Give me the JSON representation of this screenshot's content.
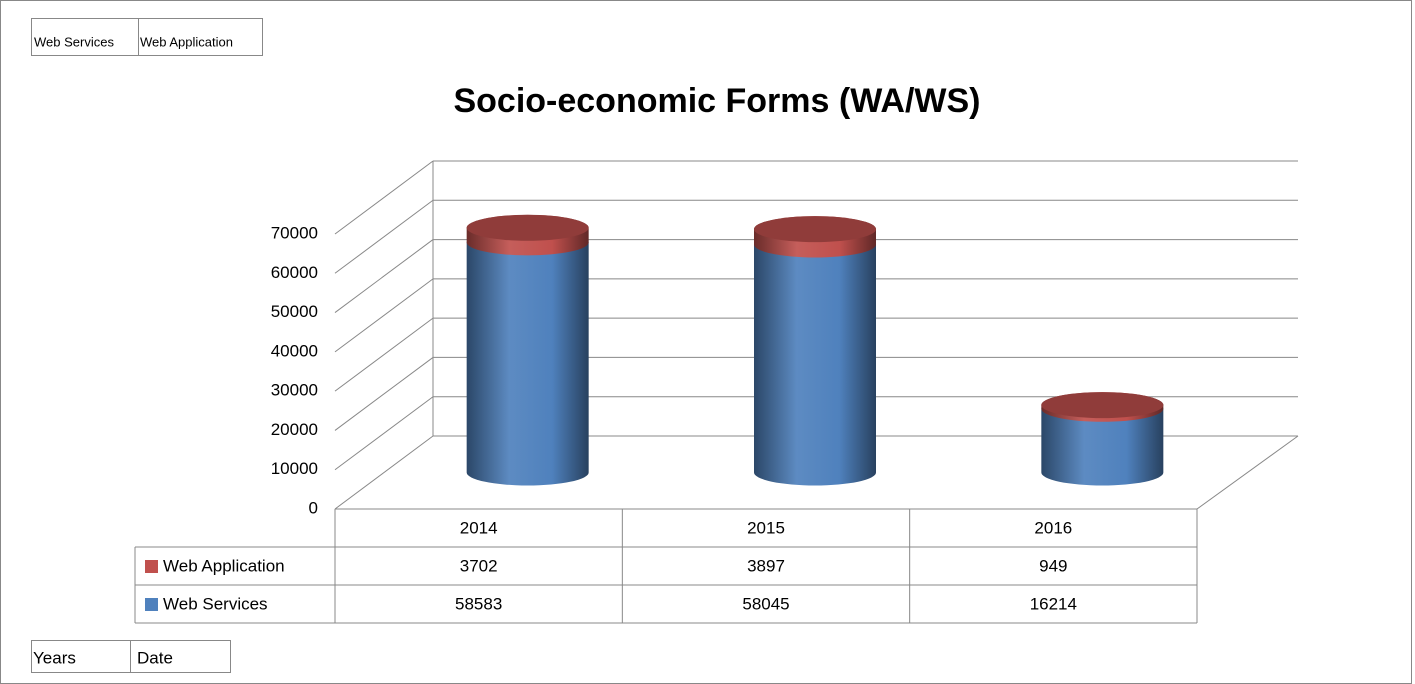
{
  "chart_data": {
    "type": "cylinder3d_stacked",
    "title": "Socio-economic Forms (WA/WS)",
    "field_buttons": [
      "Web Services",
      "Web Application"
    ],
    "axis_field_buttons": [
      "Years",
      "Date"
    ],
    "categories": [
      "2014",
      "2015",
      "2016"
    ],
    "series": [
      {
        "name": "Web Application",
        "color": "#c0504d",
        "values": [
          3702,
          3897,
          949
        ]
      },
      {
        "name": "Web Services",
        "color": "#4f81bd",
        "values": [
          58583,
          58045,
          16214
        ]
      }
    ],
    "ylim": [
      0,
      70000
    ],
    "yticks": [
      0,
      10000,
      20000,
      30000,
      40000,
      50000,
      60000,
      70000
    ],
    "grid": true,
    "data_table": true
  }
}
